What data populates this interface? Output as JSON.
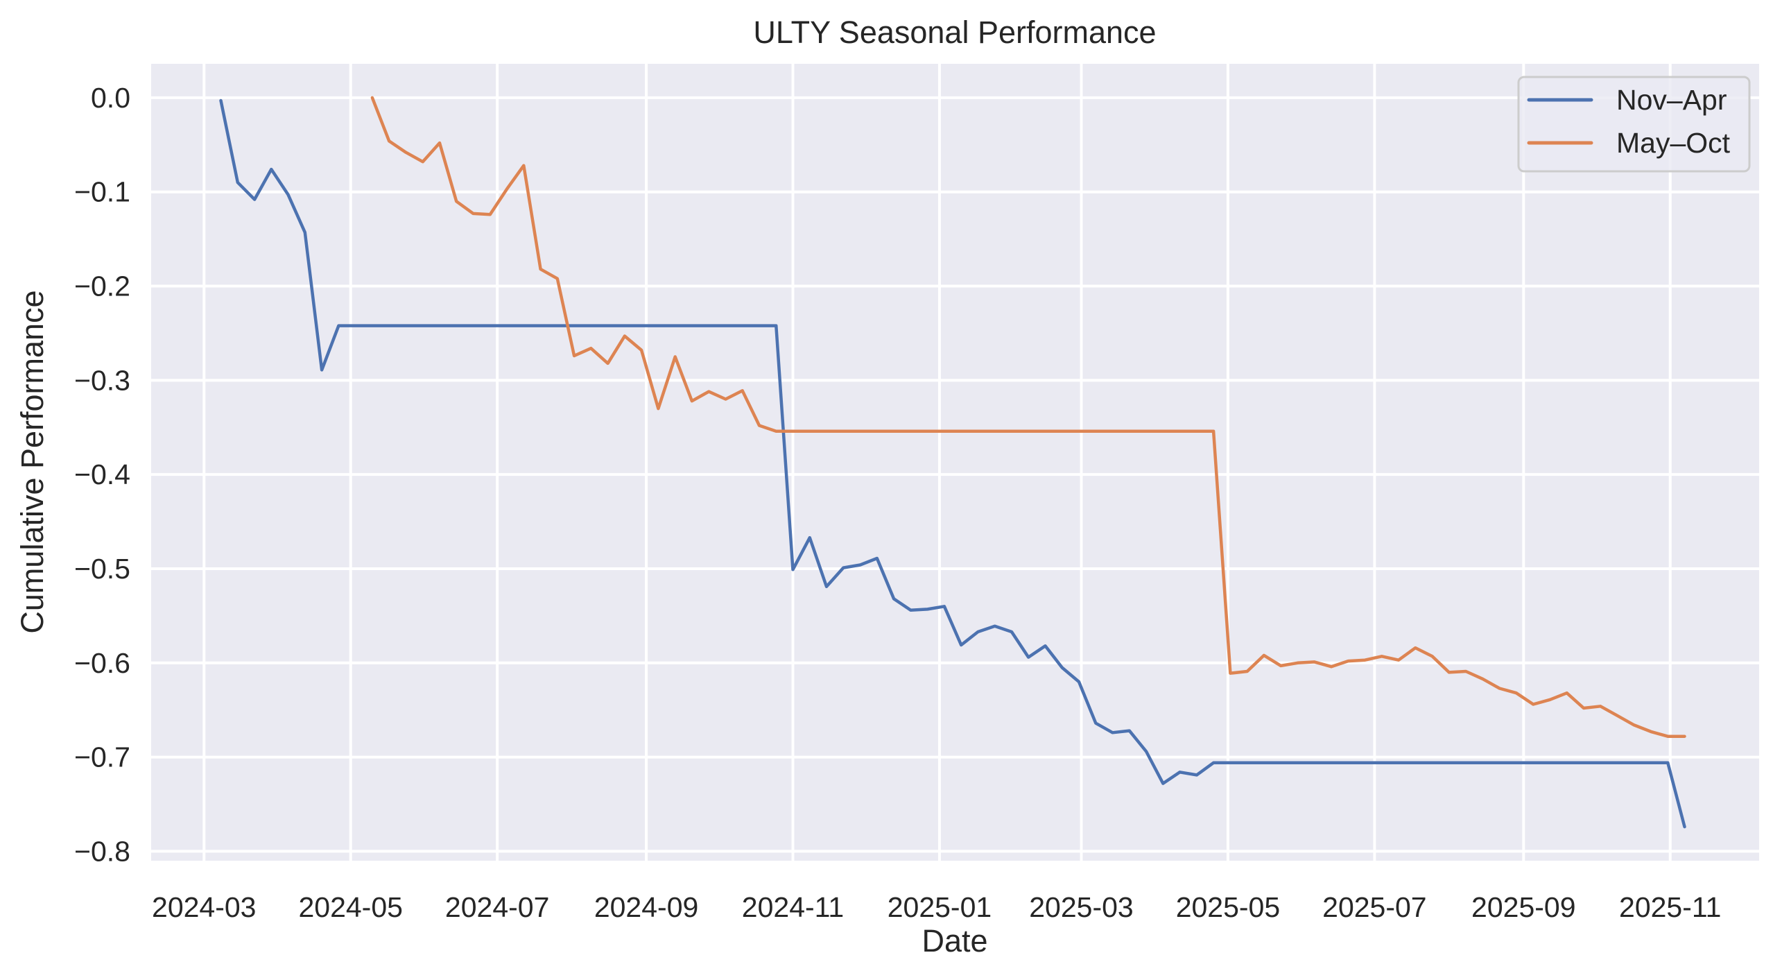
{
  "chart_data": {
    "type": "line",
    "title": "ULTY Seasonal Performance",
    "xlabel": "Date",
    "ylabel": "Cumulative Performance",
    "xlim": [
      "2024-02-08",
      "2025-12-08"
    ],
    "ylim": [
      -0.81,
      0.036
    ],
    "grid": true,
    "legend": "top-right",
    "x_ticks": [
      "2024-03",
      "2024-05",
      "2024-07",
      "2024-09",
      "2024-11",
      "2025-01",
      "2025-03",
      "2025-05",
      "2025-07",
      "2025-09",
      "2025-11"
    ],
    "y_ticks": [
      "0.0",
      "−0.1",
      "−0.2",
      "−0.3",
      "−0.4",
      "−0.5",
      "−0.6",
      "−0.7",
      "−0.8"
    ],
    "y_tick_values": [
      0.0,
      -0.1,
      -0.2,
      -0.3,
      -0.4,
      -0.5,
      -0.6,
      -0.7,
      -0.8
    ],
    "colors": {
      "background": "#eaeaf2",
      "grid": "#ffffff",
      "nov_apr": "#4c72b0",
      "may_oct": "#dd8452"
    },
    "series": [
      {
        "name": "Nov–Apr",
        "color": "#4c72b0",
        "x": [
          "2024-03-08",
          "2024-03-15",
          "2024-03-22",
          "2024-03-29",
          "2024-04-05",
          "2024-04-12",
          "2024-04-19",
          "2024-04-26",
          "2024-10-25",
          "2024-11-01",
          "2024-11-08",
          "2024-11-15",
          "2024-11-22",
          "2024-11-29",
          "2024-12-06",
          "2024-12-13",
          "2024-12-20",
          "2024-12-27",
          "2025-01-03",
          "2025-01-10",
          "2025-01-17",
          "2025-01-24",
          "2025-01-31",
          "2025-02-07",
          "2025-02-14",
          "2025-02-21",
          "2025-02-28",
          "2025-03-07",
          "2025-03-14",
          "2025-03-21",
          "2025-03-28",
          "2025-04-04",
          "2025-04-11",
          "2025-04-18",
          "2025-04-25",
          "2025-10-31",
          "2025-11-07"
        ],
        "y": [
          -0.003,
          -0.09,
          -0.108,
          -0.076,
          -0.103,
          -0.143,
          -0.289,
          -0.242,
          -0.242,
          -0.501,
          -0.467,
          -0.519,
          -0.499,
          -0.496,
          -0.489,
          -0.532,
          -0.544,
          -0.543,
          -0.54,
          -0.581,
          -0.567,
          -0.561,
          -0.567,
          -0.594,
          -0.582,
          -0.605,
          -0.62,
          -0.664,
          -0.674,
          -0.672,
          -0.694,
          -0.728,
          -0.716,
          -0.719,
          -0.706,
          -0.706,
          -0.774
        ]
      },
      {
        "name": "May–Oct",
        "color": "#dd8452",
        "x": [
          "2024-05-10",
          "2024-05-17",
          "2024-05-24",
          "2024-05-31",
          "2024-06-07",
          "2024-06-14",
          "2024-06-21",
          "2024-06-28",
          "2024-07-05",
          "2024-07-12",
          "2024-07-19",
          "2024-07-26",
          "2024-08-02",
          "2024-08-09",
          "2024-08-16",
          "2024-08-23",
          "2024-08-30",
          "2024-09-06",
          "2024-09-13",
          "2024-09-20",
          "2024-09-27",
          "2024-10-04",
          "2024-10-11",
          "2024-10-18",
          "2024-10-25",
          "2025-04-25",
          "2025-05-02",
          "2025-05-09",
          "2025-05-16",
          "2025-05-23",
          "2025-05-30",
          "2025-06-06",
          "2025-06-13",
          "2025-06-20",
          "2025-06-27",
          "2025-07-04",
          "2025-07-11",
          "2025-07-18",
          "2025-07-25",
          "2025-08-01",
          "2025-08-08",
          "2025-08-15",
          "2025-08-22",
          "2025-08-29",
          "2025-09-05",
          "2025-09-12",
          "2025-09-19",
          "2025-09-26",
          "2025-10-03",
          "2025-10-10",
          "2025-10-17",
          "2025-10-24",
          "2025-10-31",
          "2025-11-07"
        ],
        "y": [
          0.0,
          -0.046,
          -0.058,
          -0.068,
          -0.048,
          -0.11,
          -0.123,
          -0.124,
          -0.097,
          -0.072,
          -0.182,
          -0.192,
          -0.274,
          -0.266,
          -0.282,
          -0.253,
          -0.268,
          -0.33,
          -0.275,
          -0.322,
          -0.312,
          -0.32,
          -0.311,
          -0.348,
          -0.354,
          -0.354,
          -0.611,
          -0.609,
          -0.592,
          -0.603,
          -0.6,
          -0.599,
          -0.604,
          -0.598,
          -0.597,
          -0.593,
          -0.597,
          -0.584,
          -0.593,
          -0.61,
          -0.609,
          -0.617,
          -0.627,
          -0.632,
          -0.644,
          -0.639,
          -0.632,
          -0.648,
          -0.646,
          -0.656,
          -0.666,
          -0.673,
          -0.678,
          -0.678
        ]
      }
    ]
  }
}
